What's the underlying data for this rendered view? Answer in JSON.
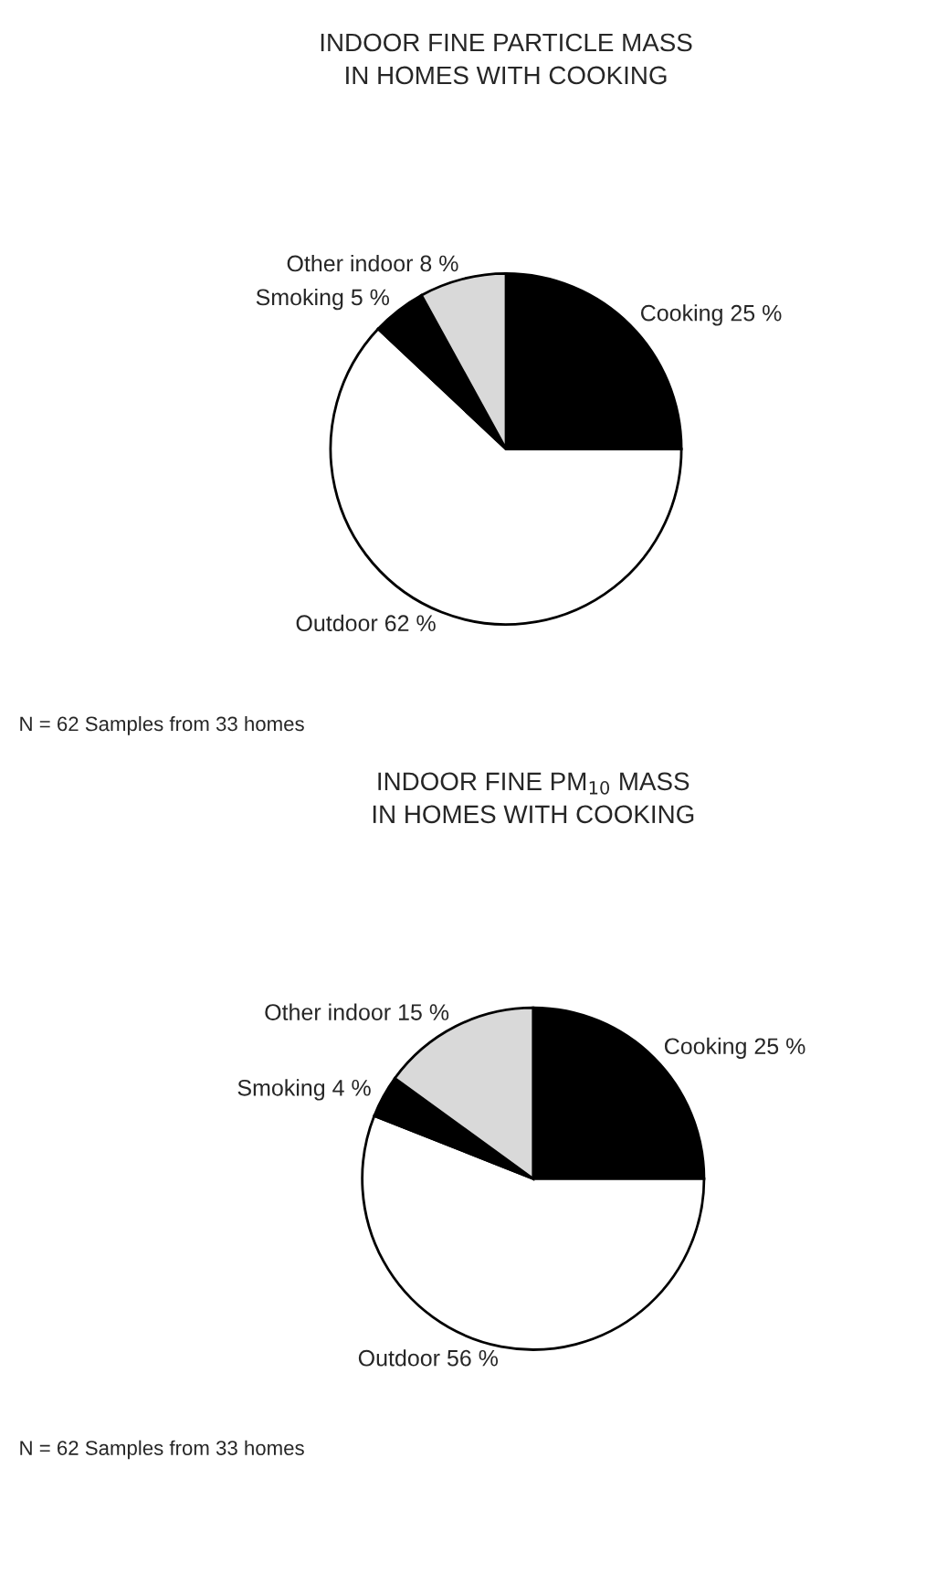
{
  "chart_data": [
    {
      "type": "pie",
      "title": "INDOOR FINE PARTICLE MASS\nIN HOMES WITH COOKING",
      "categories": [
        "Cooking",
        "Outdoor",
        "Smoking",
        "Other indoor"
      ],
      "values": [
        25,
        62,
        5,
        8
      ],
      "value_labels": [
        "25 %",
        "62 %",
        "5 %",
        "8 %"
      ],
      "colors": [
        "#000000",
        "#ffffff",
        "#000000",
        "#d9d9d9"
      ],
      "annotations": [
        "N = 62 Samples from 33 homes"
      ]
    },
    {
      "type": "pie",
      "title": "INDOOR FINE PM$_{10}$ MASS\nIN HOMES WITH COOKING",
      "categories": [
        "Cooking",
        "Outdoor",
        "Smoking",
        "Other indoor"
      ],
      "values": [
        25,
        56,
        4,
        15
      ],
      "value_labels": [
        "25 %",
        "56 %",
        "4 %",
        "15 %"
      ],
      "colors": [
        "#000000",
        "#ffffff",
        "#000000",
        "#d9d9d9"
      ],
      "annotations": [
        "N = 62 Samples from 33 homes"
      ]
    }
  ]
}
